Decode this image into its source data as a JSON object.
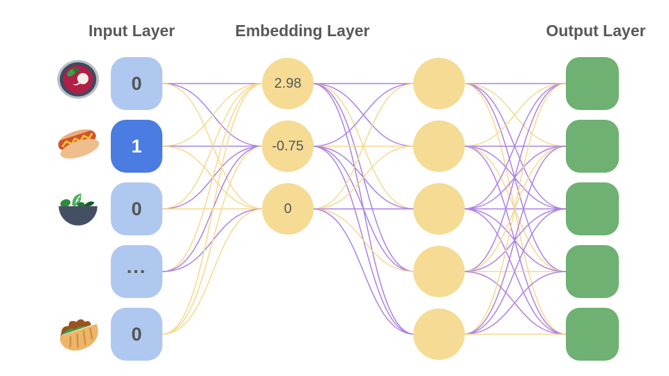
{
  "titles": {
    "input": "Input Layer",
    "embedding": "Embedding Layer",
    "output": "Output Layer"
  },
  "palette": {
    "background": "#ffffff",
    "input_node_blue": "#aec8f0",
    "input_node_active_blue": "#4a7ce1",
    "node_yellow": "#f5db93",
    "output_green": "#6eb172",
    "edge_purple": "#ab80e4",
    "edge_yellow": "#f7d88c",
    "title_text": "#595959",
    "value_text": "#545454"
  },
  "input_layer": {
    "nodes": [
      {
        "value": "0",
        "icon": "borscht-soup-icon",
        "active": false
      },
      {
        "value": "1",
        "icon": "hot-dog-icon",
        "active": true
      },
      {
        "value": "0",
        "icon": "green-salad-icon",
        "active": false
      },
      {
        "value": "...",
        "icon": null,
        "active": false
      },
      {
        "value": "0",
        "icon": "stuffed-flatbread-icon",
        "active": false
      }
    ]
  },
  "embedding_layer": {
    "nodes": [
      {
        "value": "2.98"
      },
      {
        "value": "-0.75"
      },
      {
        "value": "0"
      }
    ]
  },
  "hidden_layer": {
    "node_count": 5
  },
  "output_layer": {
    "node_count": 5
  },
  "edges": {
    "input_to_embedding": [
      [
        0,
        0,
        "purple"
      ],
      [
        0,
        1,
        "purple"
      ],
      [
        0,
        2,
        "yellow"
      ],
      [
        1,
        0,
        "yellow"
      ],
      [
        1,
        1,
        "purple"
      ],
      [
        1,
        2,
        "yellow"
      ],
      [
        2,
        0,
        "yellow"
      ],
      [
        2,
        1,
        "purple"
      ],
      [
        2,
        2,
        "yellow"
      ],
      [
        3,
        0,
        "yellow"
      ],
      [
        3,
        1,
        "purple"
      ],
      [
        3,
        2,
        "purple"
      ],
      [
        4,
        0,
        "yellow"
      ],
      [
        4,
        1,
        "yellow"
      ],
      [
        4,
        2,
        "yellow"
      ]
    ],
    "embedding_to_hidden": [
      [
        0,
        0,
        "purple"
      ],
      [
        0,
        1,
        "purple"
      ],
      [
        0,
        2,
        "yellow"
      ],
      [
        0,
        3,
        "purple"
      ],
      [
        0,
        4,
        "purple"
      ],
      [
        1,
        0,
        "purple"
      ],
      [
        1,
        1,
        "yellow"
      ],
      [
        1,
        2,
        "purple"
      ],
      [
        1,
        3,
        "purple"
      ],
      [
        1,
        4,
        "purple"
      ],
      [
        2,
        0,
        "yellow"
      ],
      [
        2,
        1,
        "yellow"
      ],
      [
        2,
        2,
        "purple"
      ],
      [
        2,
        3,
        "yellow"
      ],
      [
        2,
        4,
        "purple"
      ]
    ],
    "hidden_to_output": [
      [
        0,
        0,
        "purple"
      ],
      [
        0,
        1,
        "yellow"
      ],
      [
        0,
        2,
        "purple"
      ],
      [
        0,
        3,
        "purple"
      ],
      [
        0,
        4,
        "yellow"
      ],
      [
        1,
        0,
        "yellow"
      ],
      [
        1,
        1,
        "purple"
      ],
      [
        1,
        2,
        "purple"
      ],
      [
        1,
        3,
        "yellow"
      ],
      [
        1,
        4,
        "purple"
      ],
      [
        2,
        0,
        "purple"
      ],
      [
        2,
        1,
        "purple"
      ],
      [
        2,
        2,
        "purple"
      ],
      [
        2,
        3,
        "purple"
      ],
      [
        2,
        4,
        "purple"
      ],
      [
        3,
        0,
        "purple"
      ],
      [
        3,
        1,
        "yellow"
      ],
      [
        3,
        2,
        "purple"
      ],
      [
        3,
        3,
        "yellow"
      ],
      [
        3,
        4,
        "purple"
      ],
      [
        4,
        0,
        "yellow"
      ],
      [
        4,
        1,
        "purple"
      ],
      [
        4,
        2,
        "purple"
      ],
      [
        4,
        3,
        "purple"
      ],
      [
        4,
        4,
        "yellow"
      ]
    ]
  }
}
